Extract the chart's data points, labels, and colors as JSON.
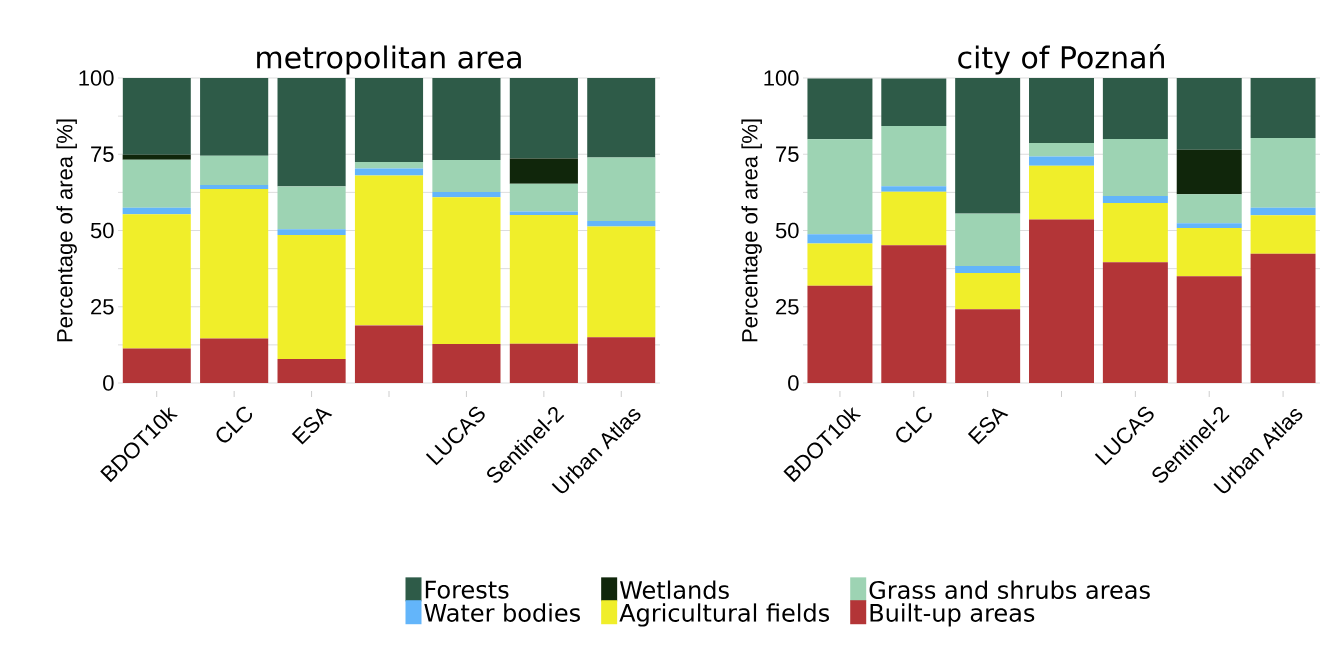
{
  "chart_data": [
    {
      "type": "bar",
      "stacked": true,
      "title": "metropolitan area",
      "ylabel": "Percentage of area [%]",
      "categories": [
        "BDOT10k",
        "CLC",
        "ESA",
        null,
        "LUCAS",
        "Sentinel-2",
        "Urban Atlas"
      ],
      "ylim": [
        0,
        100
      ],
      "yticks": [
        0,
        25,
        50,
        75,
        100
      ],
      "grid": "y",
      "legend": "bottom",
      "series": [
        {
          "name": "Built-up areas",
          "color": "#b33537",
          "values": [
            11.3,
            14.6,
            7.9,
            18.9,
            12.8,
            12.9,
            15.0
          ]
        },
        {
          "name": "Agricultural fields",
          "color": "#f0ee2a",
          "values": [
            44.0,
            49.0,
            40.6,
            49.1,
            48.1,
            42.2,
            36.3
          ]
        },
        {
          "name": "Water bodies",
          "color": "#63b5fa",
          "values": [
            2.2,
            1.3,
            1.9,
            2.3,
            1.7,
            1.1,
            1.8
          ]
        },
        {
          "name": "Grass and shrubs areas",
          "color": "#9dd3b3",
          "values": [
            15.7,
            9.6,
            14.0,
            2.2,
            10.5,
            9.1,
            20.8
          ]
        },
        {
          "name": "Wetlands",
          "color": "#10260b",
          "values": [
            1.6,
            0,
            0,
            0,
            0,
            8.3,
            0
          ]
        },
        {
          "name": "Forests",
          "color": "#2e5b48",
          "values": [
            25.2,
            25.5,
            35.6,
            27.5,
            26.9,
            26.4,
            26.1
          ]
        }
      ]
    },
    {
      "type": "bar",
      "stacked": true,
      "title": "city of Poznań",
      "ylabel": "Percentage of area [%]",
      "categories": [
        "BDOT10k",
        "CLC",
        "ESA",
        null,
        "LUCAS",
        "Sentinel-2",
        "Urban Atlas"
      ],
      "ylim": [
        0,
        100
      ],
      "yticks": [
        0,
        25,
        50,
        75,
        100
      ],
      "grid": "y",
      "series": [
        {
          "color": "#b33537",
          "values": [
            31.9,
            45.2,
            24.2,
            53.6,
            39.6,
            35.0,
            42.4
          ]
        },
        {
          "color": "#f0ee2a",
          "values": [
            13.8,
            17.5,
            11.9,
            17.6,
            19.4,
            15.8,
            12.6
          ]
        },
        {
          "color": "#63b5fa",
          "values": [
            3.1,
            1.8,
            2.3,
            3.1,
            2.3,
            1.6,
            2.5
          ]
        },
        {
          "color": "#9dd3b3",
          "values": [
            31.1,
            19.8,
            17.1,
            4.4,
            18.7,
            9.5,
            22.8
          ]
        },
        {
          "color": "#10260b",
          "values": [
            0,
            0,
            0,
            0,
            0,
            14.6,
            0
          ]
        },
        {
          "color": "#2e5b48",
          "values": [
            19.9,
            15.5,
            44.5,
            21.3,
            20.0,
            23.5,
            19.7
          ]
        }
      ]
    }
  ]
}
